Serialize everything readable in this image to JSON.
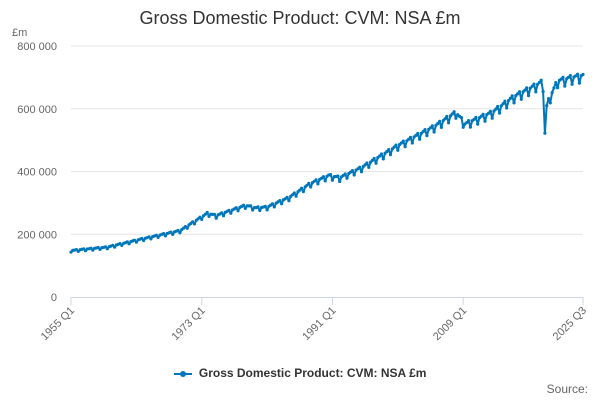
{
  "chart_data": {
    "type": "line",
    "title": "Gross Domestic Product: CVM: NSA £m",
    "ylabel": "£m",
    "xlabel": "",
    "ylim": [
      0,
      800000
    ],
    "y_ticks": [
      0,
      200000,
      400000,
      600000,
      800000
    ],
    "y_tick_labels": [
      "0",
      "200 000",
      "400 000",
      "600 000",
      "800 000"
    ],
    "x_range": [
      1955.0,
      2025.5
    ],
    "x_ticks": [
      1955.0,
      1973.0,
      1991.0,
      2009.0,
      2025.5
    ],
    "x_tick_labels": [
      "1955 Q1",
      "1973 Q1",
      "1991 Q1",
      "2009 Q1",
      "2025 Q3"
    ],
    "legend_position": "bottom-center",
    "series": [
      {
        "name": "Gross Domestic Product: CVM: NSA £m",
        "color": "#0077bb",
        "frequency": "quarterly",
        "trend_anchors": [
          [
            1955.0,
            147000
          ],
          [
            1960.0,
            158000
          ],
          [
            1965.0,
            185000
          ],
          [
            1970.0,
            210000
          ],
          [
            1973.75,
            265000
          ],
          [
            1975.0,
            258000
          ],
          [
            1979.0,
            290000
          ],
          [
            1980.5,
            282000
          ],
          [
            1982.0,
            285000
          ],
          [
            1985.0,
            315000
          ],
          [
            1988.0,
            360000
          ],
          [
            1990.5,
            385000
          ],
          [
            1992.0,
            378000
          ],
          [
            1995.0,
            410000
          ],
          [
            2000.0,
            480000
          ],
          [
            2005.0,
            540000
          ],
          [
            2008.0,
            585000
          ],
          [
            2009.25,
            548000
          ],
          [
            2010.0,
            556000
          ],
          [
            2013.0,
            585000
          ],
          [
            2016.0,
            635000
          ],
          [
            2019.75,
            680000
          ],
          [
            2020.0,
            655000
          ],
          [
            2020.25,
            522000
          ],
          [
            2020.5,
            610000
          ],
          [
            2021.0,
            635000
          ],
          [
            2022.0,
            685000
          ],
          [
            2023.0,
            690000
          ],
          [
            2024.0,
            696000
          ],
          [
            2025.5,
            702000
          ]
        ],
        "seasonal_amplitude_pct": [
          -2.6,
          0.6,
          1.0,
          1.6
        ]
      }
    ]
  },
  "credits": "Source:"
}
